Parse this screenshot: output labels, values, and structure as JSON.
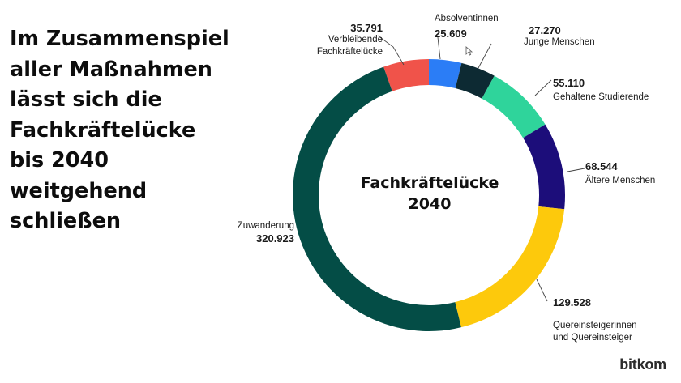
{
  "headline": {
    "lines": [
      "Im Zusammenspiel",
      "aller Maßnahmen",
      "lässt sich die",
      "Fachkräftelücke",
      "bis 2040",
      "weitgehend",
      "schließen"
    ]
  },
  "chart_data": {
    "type": "pie",
    "donut": true,
    "title": [
      "Fachkräftelücke",
      "2040"
    ],
    "slices": [
      {
        "value": 35791,
        "value_label": "35.791",
        "label": [
          "Verbleibende",
          "Fachkräftelücke"
        ],
        "color": "#f0534a"
      },
      {
        "value": 25609,
        "value_label": "25.609",
        "label": [
          "Absolventinnen"
        ],
        "color": "#2b7df6"
      },
      {
        "value": 27270,
        "value_label": "27.270",
        "label": [
          "Junge Menschen"
        ],
        "color": "#0d2a33"
      },
      {
        "value": 55110,
        "value_label": "55.110",
        "label": [
          "Gehaltene Studierende"
        ],
        "color": "#2fd49b"
      },
      {
        "value": 68544,
        "value_label": "68.544",
        "label": [
          "Ältere Menschen"
        ],
        "color": "#1c0d7a"
      },
      {
        "value": 129528,
        "value_label": "129.528",
        "label": [
          "Quereinsteigerinnen",
          "und Quereinsteiger"
        ],
        "color": "#fdc90c"
      },
      {
        "value": 320923,
        "value_label": "320.923",
        "label": [
          "Zuwanderung"
        ],
        "color": "#044d46"
      }
    ]
  },
  "brand": "bitkom"
}
